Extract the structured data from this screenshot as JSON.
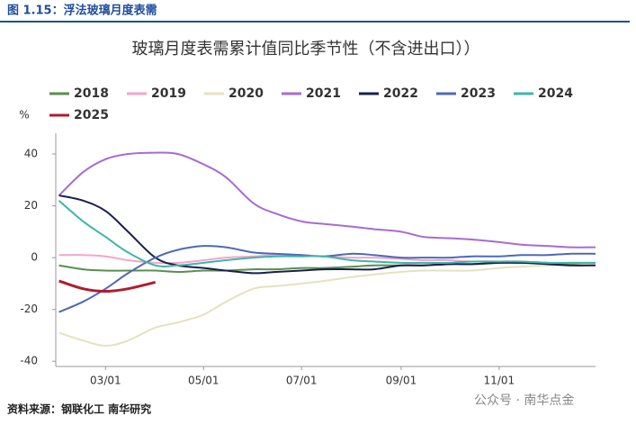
{
  "header": {
    "title": "图 1.15：浮法玻璃月度表需"
  },
  "chart_data": {
    "type": "line",
    "title": "玻璃月度表需累计值同比季节性（不含进出口））",
    "y_unit": "%",
    "x": [
      "01/31",
      "02/15",
      "03/01",
      "03/15",
      "04/01",
      "04/15",
      "05/01",
      "05/15",
      "06/01",
      "06/15",
      "07/01",
      "07/15",
      "08/01",
      "08/15",
      "09/01",
      "09/15",
      "10/01",
      "10/15",
      "11/01",
      "11/15",
      "12/01",
      "12/15",
      "12/31"
    ],
    "xlim": [
      "01/29",
      "12/31"
    ],
    "xticks": [
      "03/01",
      "05/01",
      "07/01",
      "09/01",
      "11/01"
    ],
    "ylim": [
      -42,
      48
    ],
    "yticks": [
      -40,
      -20,
      0,
      20,
      40
    ],
    "series": [
      {
        "name": "2018",
        "color": "#5a8f4e",
        "values": [
          -3,
          -4.5,
          -5,
          -5,
          -5,
          -5.5,
          -5,
          -5,
          -4.5,
          -4.5,
          -4,
          -4,
          -3.5,
          -3,
          -3,
          -3,
          -2.5,
          -2.5,
          -2,
          -2,
          -2,
          -2.5,
          -2.5
        ]
      },
      {
        "name": "2019",
        "color": "#f4a6c8",
        "values": [
          1,
          1,
          0.5,
          -1,
          -2,
          -2,
          -1,
          0,
          0.5,
          1,
          1,
          0.5,
          0,
          0,
          -0.5,
          -1,
          -1,
          -1.5,
          -1.5,
          -1.5,
          -2,
          -2,
          -2
        ]
      },
      {
        "name": "2020",
        "color": "#e3e3bf",
        "values": [
          -29,
          -32,
          -34,
          -32,
          -27,
          -25,
          -22,
          -17,
          -12,
          -11,
          -10,
          -9,
          -7.5,
          -6.5,
          -5.5,
          -5,
          -5,
          -5,
          -4,
          -3.5,
          -3,
          -3,
          -2.5
        ]
      },
      {
        "name": "2021",
        "color": "#a66bd6",
        "values": [
          24,
          33,
          38,
          40,
          40.5,
          40,
          36,
          31,
          21,
          17,
          14,
          13,
          12,
          11,
          10,
          8,
          7.5,
          7,
          6,
          5,
          4.5,
          4,
          4
        ]
      },
      {
        "name": "2022",
        "color": "#1a1f4d",
        "values": [
          24,
          22,
          18,
          10,
          0,
          -3,
          -4,
          -5,
          -6,
          -5.5,
          -5,
          -4.5,
          -4.5,
          -4.5,
          -3,
          -3,
          -2.5,
          -2.5,
          -2,
          -2,
          -2.5,
          -3,
          -3
        ]
      },
      {
        "name": "2023",
        "color": "#4f68b5",
        "values": [
          -21,
          -17,
          -12,
          -6,
          0,
          3,
          4.5,
          4,
          2,
          1.5,
          1,
          0.5,
          1.5,
          1,
          0,
          0,
          0,
          0.5,
          0.5,
          1,
          1,
          1.5,
          1.5
        ]
      },
      {
        "name": "2024",
        "color": "#3fb5a8",
        "values": [
          22,
          14,
          8,
          2,
          -3,
          -3,
          -2,
          -1,
          0,
          0.5,
          0.5,
          0.5,
          -1,
          -1.5,
          -2,
          -2,
          -2,
          -1.5,
          -1.5,
          -1.5,
          -2,
          -2,
          -2
        ]
      },
      {
        "name": "2025",
        "color": "#b01c2e",
        "values": [
          -9,
          -12,
          -13,
          -12,
          -9.5,
          null,
          null,
          null,
          null,
          null,
          null,
          null,
          null,
          null,
          null,
          null,
          null,
          null,
          null,
          null,
          null,
          null,
          null
        ]
      }
    ]
  },
  "footer": {
    "source": "资料来源：钢联化工 南华研究",
    "watermark": "公众号 · 南华点金"
  }
}
